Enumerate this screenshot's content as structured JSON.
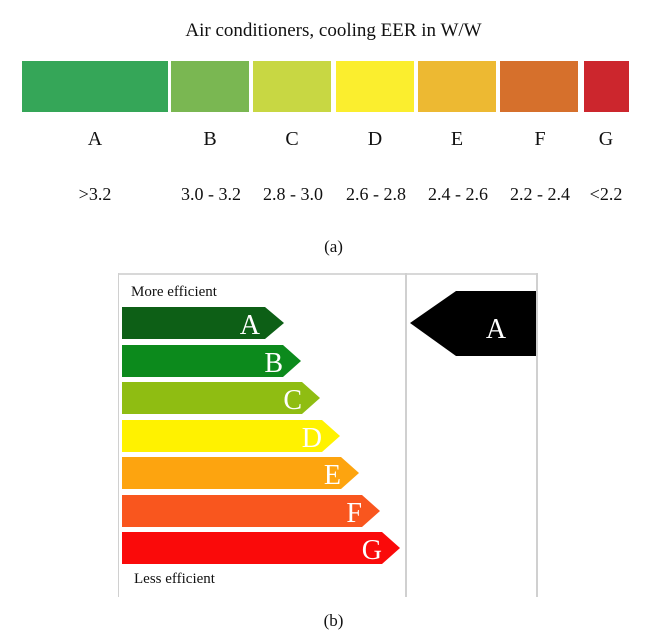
{
  "part_a": {
    "title": "Air conditioners, cooling EER in W/W",
    "classes": [
      {
        "letter": "A",
        "range": ">3.2",
        "color": "#35a658"
      },
      {
        "letter": "B",
        "range": "3.0 - 3.2",
        "color": "#7ab752"
      },
      {
        "letter": "C",
        "range": "2.8 - 3.0",
        "color": "#c8d743"
      },
      {
        "letter": "D",
        "range": "2.6 - 2.8",
        "color": "#fbee2e"
      },
      {
        "letter": "E",
        "range": "2.4 - 2.6",
        "color": "#edb932"
      },
      {
        "letter": "F",
        "range": "2.2 - 2.4",
        "color": "#d6702c"
      },
      {
        "letter": "G",
        "range": "<2.2",
        "color": "#cc262d"
      }
    ],
    "caption": "(a)"
  },
  "part_b": {
    "top_label": "More efficient",
    "bottom_label": "Less efficient",
    "arrows": [
      {
        "letter": "A",
        "color": "#0d5f16"
      },
      {
        "letter": "B",
        "color": "#0c8a1c"
      },
      {
        "letter": "C",
        "color": "#8fbd12"
      },
      {
        "letter": "D",
        "color": "#fff200"
      },
      {
        "letter": "E",
        "color": "#fda40f"
      },
      {
        "letter": "F",
        "color": "#f9561e"
      },
      {
        "letter": "G",
        "color": "#fa0a0a"
      }
    ],
    "rating": {
      "letter": "A",
      "color": "#000000"
    },
    "caption": "(b)"
  }
}
